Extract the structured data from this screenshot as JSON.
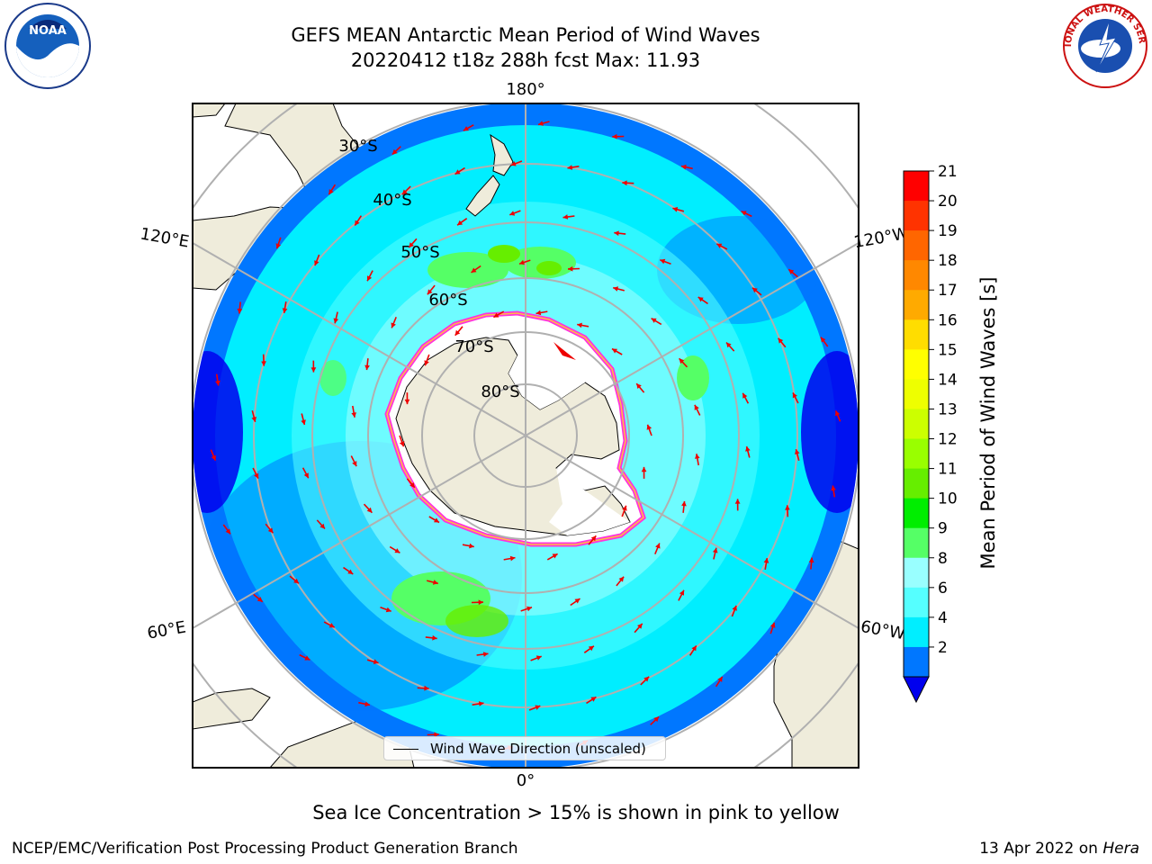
{
  "header": {
    "title_line1": "GEFS MEAN Antarctic Mean Period of Wind Waves",
    "title_line2": "20220412 t18z 288h fcst   Max: 11.93"
  },
  "map": {
    "projection": "south-polar-stereographic",
    "lon_labels": [
      "180°",
      "120°E",
      "120°W",
      "60°E",
      "60°W",
      "0°"
    ],
    "lat_labels": [
      "30°S",
      "40°S",
      "50°S",
      "60°S",
      "70°S",
      "80°S"
    ],
    "colors": {
      "land": "#efecdb",
      "ice_interior": "#ffffff",
      "ice_edge": "#ff33dd",
      "arrows": "#ee0000",
      "grid": "#b0b0b0"
    }
  },
  "colorbar": {
    "label": "Mean Period of Wind Waves [s]",
    "ticks": [
      "21",
      "20",
      "19",
      "18",
      "17",
      "16",
      "15",
      "14",
      "13",
      "12",
      "11",
      "10",
      "9",
      "8",
      "6",
      "4",
      "2"
    ],
    "bands": [
      "#ff0000",
      "#ff3300",
      "#ff6600",
      "#ff8800",
      "#ffaa00",
      "#ffdd00",
      "#ffff00",
      "#eeff00",
      "#ccff00",
      "#99ff00",
      "#66ee00",
      "#00ee00",
      "#55ff66",
      "#99ffff",
      "#55ffff",
      "#00eeff",
      "#0077ff"
    ],
    "under_color": "#0000ee"
  },
  "legend": {
    "label": "Wind Wave Direction (unscaled)"
  },
  "caption": "Sea Ice Concentration > 15% is shown in pink to yellow",
  "footer": {
    "credit": "NCEP/EMC/Verification Post Processing Product Generation Branch",
    "date_prefix": "13 Apr 2022 on ",
    "host": "Hera"
  },
  "logos": {
    "left": "NOAA",
    "right": "NATIONAL WEATHER SERVICE"
  }
}
